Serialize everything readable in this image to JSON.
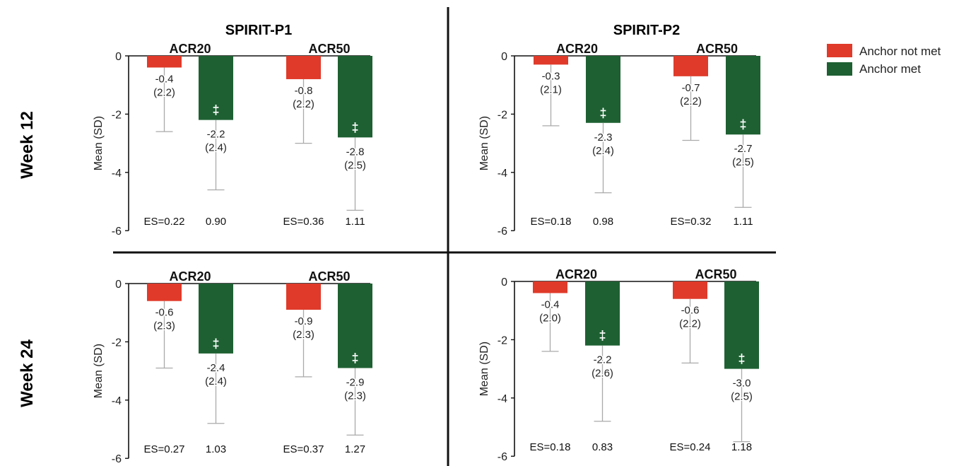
{
  "columns": [
    "SPIRIT-P1",
    "SPIRIT-P2"
  ],
  "rows": [
    "Week 12",
    "Week 24"
  ],
  "legend": [
    {
      "label": "Anchor not met",
      "color": "#e03a2a"
    },
    {
      "label": "Anchor met",
      "color": "#1e6032"
    }
  ],
  "significance_marker": "‡",
  "chart_data": [
    {
      "type": "bar",
      "panel": "SPIRIT-P1 Week 12",
      "groups": [
        "ACR20",
        "ACR50"
      ],
      "ylabel": "Mean (SD)",
      "ylim": [
        -6,
        0
      ],
      "yticks": [
        0,
        -2,
        -4,
        -6
      ],
      "series": [
        {
          "name": "Anchor not met",
          "values": [
            -0.4,
            -0.8
          ],
          "sd": [
            2.2,
            2.2
          ],
          "es": [
            "ES=0.22",
            "ES=0.36"
          ]
        },
        {
          "name": "Anchor met",
          "values": [
            -2.2,
            -2.8
          ],
          "sd": [
            2.4,
            2.5
          ],
          "es": [
            "0.90",
            "1.11"
          ]
        }
      ]
    },
    {
      "type": "bar",
      "panel": "SPIRIT-P2 Week 12",
      "groups": [
        "ACR20",
        "ACR50"
      ],
      "ylabel": "Mean (SD)",
      "ylim": [
        -6,
        0
      ],
      "yticks": [
        0,
        -2,
        -4,
        -6
      ],
      "series": [
        {
          "name": "Anchor not met",
          "values": [
            -0.3,
            -0.7
          ],
          "sd": [
            2.1,
            2.2
          ],
          "es": [
            "ES=0.18",
            "ES=0.32"
          ]
        },
        {
          "name": "Anchor met",
          "values": [
            -2.3,
            -2.7
          ],
          "sd": [
            2.4,
            2.5
          ],
          "es": [
            "0.98",
            "1.11"
          ]
        }
      ]
    },
    {
      "type": "bar",
      "panel": "SPIRIT-P1 Week 24",
      "groups": [
        "ACR20",
        "ACR50"
      ],
      "ylabel": "Mean (SD)",
      "ylim": [
        -6,
        0
      ],
      "yticks": [
        0,
        -2,
        -4,
        -6
      ],
      "series": [
        {
          "name": "Anchor not met",
          "values": [
            -0.6,
            -0.9
          ],
          "sd": [
            2.3,
            2.3
          ],
          "es": [
            "ES=0.27",
            "ES=0.37"
          ]
        },
        {
          "name": "Anchor met",
          "values": [
            -2.4,
            -2.9
          ],
          "sd": [
            2.4,
            2.3
          ],
          "es": [
            "1.03",
            "1.27"
          ]
        }
      ]
    },
    {
      "type": "bar",
      "panel": "SPIRIT-P2 Week 24",
      "groups": [
        "ACR20",
        "ACR50"
      ],
      "ylabel": "Mean (SD)",
      "ylim": [
        -6,
        0
      ],
      "yticks": [
        0,
        -2,
        -4,
        -6
      ],
      "series": [
        {
          "name": "Anchor not met",
          "values": [
            -0.4,
            -0.6
          ],
          "sd": [
            2.0,
            2.2
          ],
          "es": [
            "ES=0.18",
            "ES=0.24"
          ]
        },
        {
          "name": "Anchor met",
          "values": [
            -2.2,
            -3.0
          ],
          "sd": [
            2.6,
            2.5
          ],
          "es": [
            "0.83",
            "1.18"
          ]
        }
      ]
    }
  ]
}
